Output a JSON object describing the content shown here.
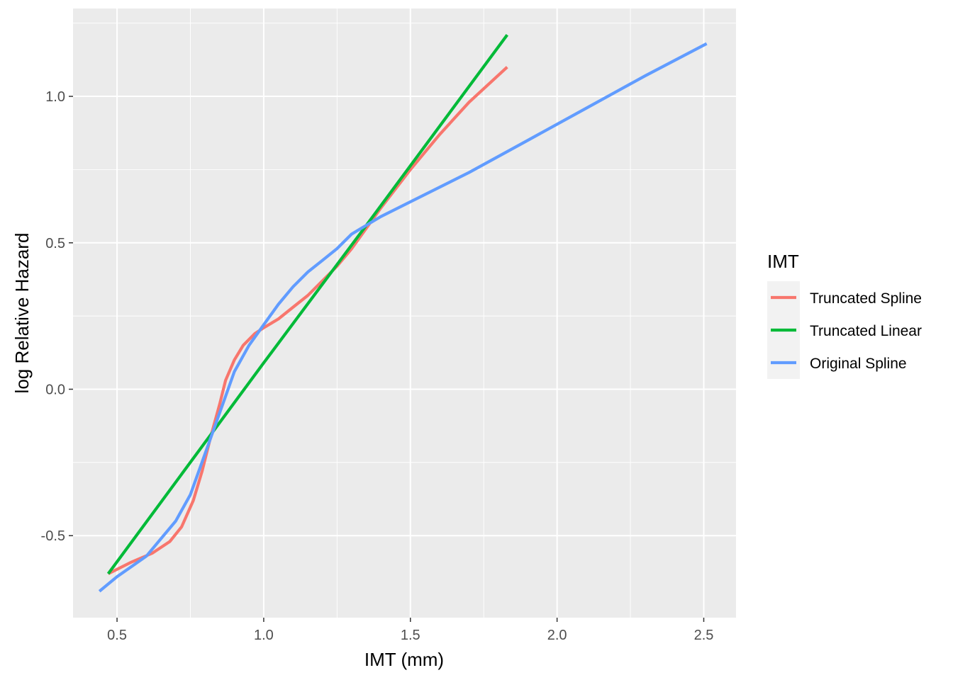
{
  "chart_data": {
    "type": "line",
    "xlabel": "IMT (mm)",
    "ylabel": "log Relative Hazard",
    "xlim": [
      0.35,
      2.61
    ],
    "ylim": [
      -0.78,
      1.3
    ],
    "x_ticks": [
      0.5,
      1.0,
      1.5,
      2.0,
      2.5
    ],
    "x_tick_labels": [
      "0.5",
      "1.0",
      "1.5",
      "2.0",
      "2.5"
    ],
    "y_ticks": [
      -0.5,
      0.0,
      0.5,
      1.0
    ],
    "y_tick_labels": [
      "-0.5",
      "0.0",
      "0.5",
      "1.0"
    ],
    "x_minor": [
      0.75,
      1.25,
      1.75,
      2.25
    ],
    "y_minor": [
      -0.25,
      0.25,
      0.75,
      1.25
    ],
    "grid": true,
    "panel_background": "#ebebeb",
    "legend": {
      "title": "IMT",
      "position": "right"
    },
    "series": [
      {
        "name": "Truncated Spline",
        "color": "#f8766d",
        "points": [
          [
            0.47,
            -0.63
          ],
          [
            0.55,
            -0.59
          ],
          [
            0.62,
            -0.56
          ],
          [
            0.68,
            -0.52
          ],
          [
            0.72,
            -0.47
          ],
          [
            0.76,
            -0.38
          ],
          [
            0.79,
            -0.28
          ],
          [
            0.82,
            -0.16
          ],
          [
            0.85,
            -0.05
          ],
          [
            0.87,
            0.03
          ],
          [
            0.9,
            0.1
          ],
          [
            0.93,
            0.15
          ],
          [
            0.97,
            0.19
          ],
          [
            1.0,
            0.21
          ],
          [
            1.05,
            0.24
          ],
          [
            1.1,
            0.28
          ],
          [
            1.15,
            0.32
          ],
          [
            1.2,
            0.37
          ],
          [
            1.25,
            0.42
          ],
          [
            1.3,
            0.48
          ],
          [
            1.35,
            0.55
          ],
          [
            1.4,
            0.62
          ],
          [
            1.5,
            0.75
          ],
          [
            1.6,
            0.87
          ],
          [
            1.7,
            0.98
          ],
          [
            1.83,
            1.1
          ]
        ]
      },
      {
        "name": "Truncated Linear",
        "color": "#00ba38",
        "points": [
          [
            0.47,
            -0.63
          ],
          [
            1.0,
            0.09
          ],
          [
            1.35,
            0.56
          ],
          [
            1.83,
            1.21
          ]
        ]
      },
      {
        "name": "Original Spline",
        "color": "#619cff",
        "points": [
          [
            0.44,
            -0.69
          ],
          [
            0.5,
            -0.64
          ],
          [
            0.6,
            -0.57
          ],
          [
            0.7,
            -0.45
          ],
          [
            0.75,
            -0.36
          ],
          [
            0.8,
            -0.22
          ],
          [
            0.85,
            -0.08
          ],
          [
            0.9,
            0.06
          ],
          [
            0.95,
            0.15
          ],
          [
            1.0,
            0.22
          ],
          [
            1.05,
            0.29
          ],
          [
            1.1,
            0.35
          ],
          [
            1.15,
            0.4
          ],
          [
            1.2,
            0.44
          ],
          [
            1.25,
            0.48
          ],
          [
            1.3,
            0.53
          ],
          [
            1.35,
            0.56
          ],
          [
            1.4,
            0.59
          ],
          [
            1.5,
            0.64
          ],
          [
            1.7,
            0.74
          ],
          [
            1.9,
            0.85
          ],
          [
            2.1,
            0.96
          ],
          [
            2.3,
            1.07
          ],
          [
            2.51,
            1.18
          ]
        ]
      }
    ]
  }
}
